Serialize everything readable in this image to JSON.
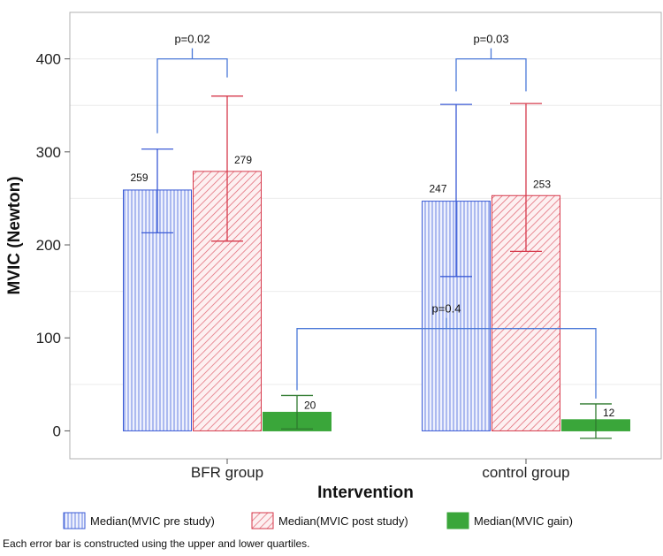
{
  "chart_data": {
    "type": "bar",
    "xlabel": "Intervention",
    "ylabel": "MVIC (Newton)",
    "ylim": [
      -30,
      450
    ],
    "yticks": [
      0,
      100,
      200,
      300,
      400
    ],
    "categories": [
      "BFR group",
      "control group"
    ],
    "series": [
      {
        "name": "Median(MVIC pre study)",
        "values": [
          259,
          247
        ],
        "q1": [
          213,
          166
        ],
        "q3": [
          303,
          351
        ],
        "color": "#3b5bd6",
        "pattern": "vertical"
      },
      {
        "name": "Median(MVIC post study)",
        "values": [
          279,
          253
        ],
        "q1": [
          204,
          193
        ],
        "q3": [
          360,
          352
        ],
        "color": "#d6394b",
        "pattern": "diagonal"
      },
      {
        "name": "Median(MVIC gain)",
        "values": [
          20,
          12
        ],
        "q1": [
          2,
          -8
        ],
        "q3": [
          38,
          29
        ],
        "color": "#3aa63a",
        "pattern": "solid"
      }
    ],
    "annotations": [
      {
        "text": "p=0.02",
        "from": [
          0,
          0
        ],
        "to": [
          0,
          1
        ],
        "y": 400
      },
      {
        "text": "p=0.03",
        "from": [
          1,
          0
        ],
        "to": [
          1,
          1
        ],
        "y": 400
      },
      {
        "text": "p=0.4",
        "from": [
          0,
          2
        ],
        "to": [
          1,
          2
        ],
        "y": 110
      }
    ],
    "grid": "horizontal",
    "legend_position": "bottom",
    "footnote": "Each error bar is constructed using the upper and lower quartiles."
  }
}
